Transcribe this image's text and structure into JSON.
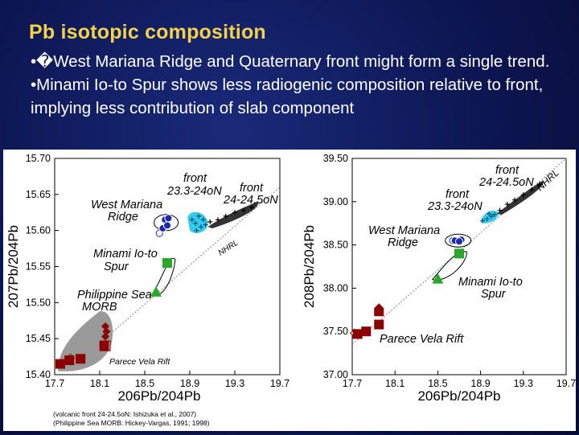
{
  "slide": {
    "title": "Pb isotopic composition",
    "bullets": [
      "•�West Mariana Ridge and Quaternary front might form a single trend.",
      "•Minami Io-to Spur shows less radiogenic composition relative to front, implying less contribution of slab component"
    ]
  },
  "colors": {
    "title": "#f2d24b",
    "background": "#0c1550",
    "front_cyan": "#33ccee",
    "front_dark": "#333333",
    "west_mariana": "#1a2aa8",
    "minami_green": "#2aa82a",
    "parece_red": "#8b0000",
    "morb_grey": "#9a9a9a"
  },
  "chart_data": [
    {
      "type": "scatter",
      "xlabel": "206Pb/204Pb",
      "ylabel": "207Pb/204Pb",
      "xlim": [
        17.7,
        19.7
      ],
      "ylim": [
        15.4,
        15.7
      ],
      "x_ticks": [
        "17.7",
        "18.1",
        "18.5",
        "18.9",
        "19.3",
        "19.7"
      ],
      "y_ticks": [
        "15.70",
        "15.65",
        "15.60",
        "15.55",
        "15.50",
        "15.45",
        "15.40"
      ],
      "reference_line": {
        "name": "NHRL",
        "points": [
          [
            17.85,
            15.41
          ],
          [
            19.7,
            15.66
          ]
        ]
      },
      "annotations": [
        "front 23.3-24oN",
        "front 24-24.5oN",
        "West Mariana Ridge",
        "Minami Io-to Spur",
        "Philippine Sea MORB",
        "Parece Vela Rift",
        "NHRL"
      ],
      "series": [
        {
          "name": "front 23.3-24oN",
          "marker": "plus-cyan",
          "x": [
            18.92,
            18.95,
            18.98,
            19.0,
            19.02,
            18.96,
            19.04
          ],
          "y": [
            15.615,
            15.61,
            15.62,
            15.605,
            15.615,
            15.6,
            15.608
          ]
        },
        {
          "name": "front 24-24.5oN",
          "marker": "plus-dark",
          "x": [
            19.08,
            19.15,
            19.22,
            19.3,
            19.38,
            19.45
          ],
          "y": [
            15.612,
            15.615,
            15.62,
            15.625,
            15.628,
            15.632
          ]
        },
        {
          "name": "West Mariana Ridge",
          "marker": "circle-blue",
          "x": [
            18.68,
            18.71,
            18.66,
            18.7
          ],
          "y": [
            15.615,
            15.617,
            15.603,
            15.607
          ]
        },
        {
          "name": "Minami Io-to Spur",
          "marker": "square-green",
          "x": [
            18.7
          ],
          "y": [
            15.555
          ]
        },
        {
          "name": "Minami Io-to Spur",
          "marker": "triangle-green",
          "x": [
            18.6
          ],
          "y": [
            15.515
          ]
        },
        {
          "name": "Philippine Sea MORB",
          "marker": "diamond-red",
          "x": [
            18.15,
            18.16,
            18.15
          ],
          "y": [
            15.467,
            15.46,
            15.453
          ]
        },
        {
          "name": "Parece Vela Rift",
          "marker": "square-red",
          "x": [
            17.75,
            17.83,
            17.93,
            18.14
          ],
          "y": [
            15.415,
            15.42,
            15.422,
            15.44
          ]
        }
      ],
      "notes": [
        "(volcanic front 24-24.5oN: Ishizuka et al., 2007)",
        "(Philippine Sea MORB: Hickey-Vargas, 1991; 1998)"
      ]
    },
    {
      "type": "scatter",
      "xlabel": "206Pb/204Pb",
      "ylabel": "208Pb/204Pb",
      "xlim": [
        17.7,
        19.7
      ],
      "ylim": [
        37.0,
        39.5
      ],
      "x_ticks": [
        "17.7",
        "18.1",
        "18.5",
        "18.9",
        "19.3",
        "19.7"
      ],
      "y_ticks": [
        "39.50",
        "39.00",
        "38.50",
        "38.00",
        "37.50",
        "37.00"
      ],
      "reference_line": {
        "name": "NHRL",
        "points": [
          [
            17.7,
            37.35
          ],
          [
            19.7,
            39.5
          ]
        ]
      },
      "annotations": [
        "front 24-24.5oN",
        "front 23.3-24oN",
        "West Mariana Ridge",
        "Minami Io-to Spur",
        "Parece Vela Rift",
        "NHRL"
      ],
      "series": [
        {
          "name": "front 23.3-24oN",
          "marker": "plus-cyan",
          "x": [
            18.92,
            18.96,
            19.0,
            19.03,
            18.98
          ],
          "y": [
            38.78,
            38.8,
            38.83,
            38.85,
            38.86
          ]
        },
        {
          "name": "front 24-24.5oN",
          "marker": "plus-dark",
          "x": [
            19.08,
            19.15,
            19.22,
            19.3,
            19.38,
            19.45
          ],
          "y": [
            38.9,
            38.97,
            39.02,
            39.08,
            39.14,
            39.2
          ]
        },
        {
          "name": "West Mariana Ridge",
          "marker": "circle-blue",
          "x": [
            18.68,
            18.72,
            18.66,
            18.7
          ],
          "y": [
            38.55,
            38.56,
            38.55,
            38.54
          ]
        },
        {
          "name": "Minami Io-to Spur",
          "marker": "square-green",
          "x": [
            18.7
          ],
          "y": [
            38.4
          ]
        },
        {
          "name": "Minami Io-to Spur",
          "marker": "triangle-green",
          "x": [
            18.5
          ],
          "y": [
            38.11
          ]
        },
        {
          "name": "Parece Vela Rift",
          "marker": "square-red",
          "x": [
            17.75,
            17.83,
            17.95
          ],
          "y": [
            37.47,
            37.5,
            37.58
          ]
        },
        {
          "name": "Parece Vela Rift",
          "marker": "square-red-house",
          "x": [
            17.95
          ],
          "y": [
            37.75
          ]
        }
      ]
    }
  ]
}
